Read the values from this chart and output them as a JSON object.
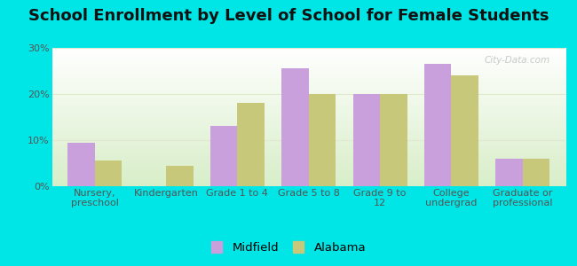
{
  "title": "School Enrollment by Level of School for Female Students",
  "categories": [
    "Nursery,\npreschool",
    "Kindergarten",
    "Grade 1 to 4",
    "Grade 5 to 8",
    "Grade 9 to\n12",
    "College\nundergrad",
    "Graduate or\nprofessional"
  ],
  "midfield_values": [
    9.5,
    0,
    13.0,
    25.5,
    20.0,
    26.5,
    6.0
  ],
  "alabama_values": [
    5.5,
    4.5,
    18.0,
    20.0,
    20.0,
    24.0,
    6.0
  ],
  "midfield_color": "#c9a0dc",
  "alabama_color": "#c8c87a",
  "ylim": [
    0,
    30
  ],
  "yticks": [
    0,
    10,
    20,
    30
  ],
  "ytick_labels": [
    "0%",
    "10%",
    "20%",
    "30%"
  ],
  "background_color": "#00e5e5",
  "plot_bg_top": "#ffffff",
  "plot_bg_bottom": "#d8eec8",
  "grid_color": "#e0e8d0",
  "bar_width": 0.38,
  "legend_labels": [
    "Midfield",
    "Alabama"
  ],
  "title_fontsize": 13,
  "tick_fontsize": 8,
  "legend_fontsize": 9.5,
  "watermark": "City-Data.com"
}
